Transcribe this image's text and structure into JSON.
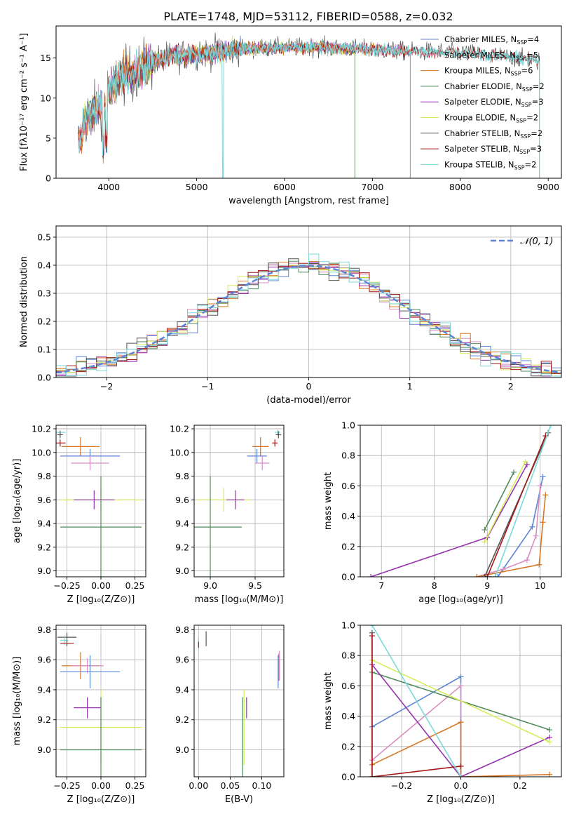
{
  "figure": {
    "title": "PLATE=1748, MJD=53112, FIBERID=0588, z=0.032"
  },
  "chart_data": [
    {
      "id": "spectrum",
      "type": "line",
      "xlabel": "wavelength [Angstrom, rest frame]",
      "ylabel": "Flux [fλ10⁻¹⁷ erg cm⁻² s⁻¹ A⁻¹]",
      "xlim": [
        3400,
        9150
      ],
      "ylim": [
        0,
        19
      ],
      "xticks": [
        4000,
        5000,
        6000,
        7000,
        8000,
        9000
      ],
      "yticks": [
        0,
        5,
        10,
        15
      ],
      "legend_position": "right",
      "continuum": {
        "x": [
          3650,
          3800,
          3950,
          4100,
          4300,
          4500,
          4700,
          4900,
          5100,
          5300,
          5500,
          5700,
          5900,
          6100,
          6300,
          6500,
          6700,
          6900,
          7100,
          7300,
          7500,
          7700,
          7900,
          8100,
          8300,
          8500,
          8700,
          8900
        ],
        "y": [
          6.5,
          8.0,
          9.5,
          12.5,
          13.2,
          14.5,
          15.2,
          15.4,
          15.6,
          15.9,
          16.1,
          16.2,
          16.3,
          16.3,
          16.4,
          16.3,
          16.2,
          16.1,
          16.0,
          15.9,
          15.8,
          15.8,
          15.7,
          15.6,
          15.4,
          15.2,
          14.9,
          14.6
        ]
      },
      "series": [
        {
          "name": "Chabrier MILES, N",
          "sub": "SSP",
          "suffix": "=4",
          "color": "#5b84d6",
          "x_end": 7430
        },
        {
          "name": "Salpeter MILES, N",
          "sub": "SSP",
          "suffix": "=5",
          "color": "#d98ec0",
          "x_end": 7430
        },
        {
          "name": "Kroupa MILES, N",
          "sub": "SSP",
          "suffix": "=6",
          "color": "#d57622",
          "x_end": 7430
        },
        {
          "name": "Chabrier ELODIE, N",
          "sub": "SSP",
          "suffix": "=2",
          "color": "#4f8a5c",
          "x_end": 6800
        },
        {
          "name": "Salpeter ELODIE, N",
          "sub": "SSP",
          "suffix": "=3",
          "color": "#9433ad",
          "x_end": 6800
        },
        {
          "name": "Kroupa ELODIE, N",
          "sub": "SSP",
          "suffix": "=2",
          "color": "#d7ec59",
          "x_end": 6800
        },
        {
          "name": "Chabrier STELIB, N",
          "sub": "SSP",
          "suffix": "=2",
          "color": "#555555",
          "x_end": 8900
        },
        {
          "name": "Salpeter STELIB, N",
          "sub": "SSP",
          "suffix": "=3",
          "color": "#a61717",
          "x_end": 8900
        },
        {
          "name": "Kroupa STELIB, N",
          "sub": "SSP",
          "suffix": "=2",
          "color": "#7bd9d9",
          "x_end": 8900
        }
      ]
    },
    {
      "id": "residuals",
      "type": "histogram",
      "xlabel": "(data-model)/error",
      "ylabel": "Normed distribution",
      "xlim": [
        -2.5,
        2.5
      ],
      "ylim": [
        0,
        0.54
      ],
      "xticks": [
        -2,
        -1,
        0,
        1,
        2
      ],
      "yticks": [
        0.0,
        0.1,
        0.2,
        0.3,
        0.4,
        0.5
      ],
      "grid": true,
      "legend": "𝒩(0, 1)",
      "legend_position": "top-right",
      "gaussian": {
        "mean": 0,
        "sigma": 1,
        "color": "#5b84d6"
      }
    },
    {
      "id": "age-vs-Z",
      "type": "errorbar",
      "xlabel": "Z [log₁₀(Z/Z⊙)]",
      "ylabel": "age  [log₁₀(age/yr)]",
      "xlim": [
        -0.33,
        0.33
      ],
      "ylim": [
        8.95,
        10.23
      ],
      "xticks": [
        -0.25,
        0.0,
        0.25
      ],
      "yticks": [
        9.0,
        9.2,
        9.4,
        9.6,
        9.8,
        10.0,
        10.2
      ],
      "grid": true,
      "points": [
        {
          "x": -0.3,
          "xerr": 0.04,
          "y": 10.17,
          "yerr": 0.02,
          "color": "#7bd9d9"
        },
        {
          "x": -0.3,
          "xerr": 0.02,
          "y": 10.15,
          "yerr": 0.03,
          "color": "#555555"
        },
        {
          "x": -0.3,
          "xerr": 0.04,
          "y": 10.08,
          "yerr": 0.03,
          "color": "#a61717"
        },
        {
          "x": -0.15,
          "xerr": 0.14,
          "y": 10.05,
          "yerr": 0.08,
          "color": "#d57622"
        },
        {
          "x": -0.08,
          "xerr": 0.22,
          "y": 9.97,
          "yerr": 0.06,
          "color": "#5b84d6"
        },
        {
          "x": -0.08,
          "xerr": 0.14,
          "y": 9.91,
          "yerr": 0.06,
          "color": "#d98ec0"
        },
        {
          "x": 0.0,
          "xerr": 0.3,
          "y": 9.6,
          "yerr": 0.1,
          "color": "#d7ec59"
        },
        {
          "x": -0.05,
          "xerr": 0.15,
          "y": 9.6,
          "yerr": 0.08,
          "color": "#9433ad"
        },
        {
          "x": 0.0,
          "xerr": 0.3,
          "y": 9.37,
          "yerr": 0.43,
          "color": "#4f8a5c"
        }
      ]
    },
    {
      "id": "age-vs-mass",
      "type": "errorbar",
      "xlabel": "mass [log₁₀(M/M⊙)]",
      "ylabel": "",
      "xlim": [
        8.82,
        9.82
      ],
      "ylim": [
        8.95,
        10.23
      ],
      "xticks": [
        9.0,
        9.5
      ],
      "yticks": [
        9.0,
        9.2,
        9.4,
        9.6,
        9.8,
        10.0,
        10.2
      ],
      "grid": true,
      "points": [
        {
          "x": 9.75,
          "xerr": 0.03,
          "y": 10.17,
          "yerr": 0.02,
          "color": "#7bd9d9"
        },
        {
          "x": 9.76,
          "xerr": 0.03,
          "y": 10.15,
          "yerr": 0.03,
          "color": "#555555"
        },
        {
          "x": 9.72,
          "xerr": 0.03,
          "y": 10.08,
          "yerr": 0.03,
          "color": "#a61717"
        },
        {
          "x": 9.56,
          "xerr": 0.09,
          "y": 10.05,
          "yerr": 0.08,
          "color": "#d57622"
        },
        {
          "x": 9.52,
          "xerr": 0.11,
          "y": 9.97,
          "yerr": 0.06,
          "color": "#5b84d6"
        },
        {
          "x": 9.58,
          "xerr": 0.08,
          "y": 9.91,
          "yerr": 0.06,
          "color": "#d98ec0"
        },
        {
          "x": 9.15,
          "xerr": 0.3,
          "y": 9.6,
          "yerr": 0.1,
          "color": "#d7ec59"
        },
        {
          "x": 9.28,
          "xerr": 0.1,
          "y": 9.6,
          "yerr": 0.08,
          "color": "#9433ad"
        },
        {
          "x": 9.0,
          "xerr": 0.35,
          "y": 9.37,
          "yerr": 0.43,
          "color": "#4f8a5c"
        }
      ]
    },
    {
      "id": "mass-weight-vs-age",
      "type": "line",
      "xlabel": "age  [log₁₀(age/yr)]",
      "ylabel": "mass weight",
      "xlim": [
        6.6,
        10.4
      ],
      "ylim": [
        0,
        1.0
      ],
      "xticks": [
        7,
        8,
        9,
        10
      ],
      "yticks": [
        0.0,
        0.2,
        0.4,
        0.6,
        0.8,
        1.0
      ],
      "grid": true,
      "series": [
        {
          "color": "#5b84d6",
          "x": [
            8.95,
            9.2,
            9.85,
            10.05
          ],
          "y": [
            0.0,
            0.0,
            0.33,
            0.66
          ]
        },
        {
          "color": "#d98ec0",
          "x": [
            8.8,
            9.3,
            9.75,
            9.92,
            10.0
          ],
          "y": [
            0.0,
            0.05,
            0.11,
            0.27,
            0.6
          ]
        },
        {
          "color": "#d57622",
          "x": [
            8.8,
            9.98,
            10.05,
            10.1
          ],
          "y": [
            0.0,
            0.08,
            0.36,
            0.54
          ]
        },
        {
          "color": "#4f8a5c",
          "x": [
            8.95,
            9.5
          ],
          "y": [
            0.31,
            0.69
          ]
        },
        {
          "color": "#9433ad",
          "x": [
            6.8,
            9.0,
            9.75
          ],
          "y": [
            0.0,
            0.26,
            0.74
          ]
        },
        {
          "color": "#d7ec59",
          "x": [
            8.95,
            9.72
          ],
          "y": [
            0.23,
            0.76
          ]
        },
        {
          "color": "#555555",
          "x": [
            8.95,
            10.15
          ],
          "y": [
            0.0,
            0.95
          ]
        },
        {
          "color": "#a61717",
          "x": [
            9.0,
            10.1
          ],
          "y": [
            0.0,
            0.93
          ]
        },
        {
          "color": "#7bd9d9",
          "x": [
            9.15,
            10.2
          ],
          "y": [
            0.0,
            1.0
          ]
        }
      ]
    },
    {
      "id": "mass-vs-Z",
      "type": "errorbar",
      "xlabel": "Z [log₁₀(Z/Z⊙)]",
      "ylabel": "mass [log₁₀(M/M⊙)]",
      "xlim": [
        -0.33,
        0.33
      ],
      "ylim": [
        8.82,
        9.83
      ],
      "xticks": [
        -0.25,
        0.0,
        0.25
      ],
      "yticks": [
        9.0,
        9.2,
        9.4,
        9.6,
        9.8
      ],
      "grid": true,
      "points": [
        {
          "x": -0.25,
          "xerr": 0.07,
          "y": 9.75,
          "yerr": 0.03,
          "color": "#555555"
        },
        {
          "x": -0.27,
          "xerr": 0.03,
          "y": 9.73,
          "yerr": 0.03,
          "color": "#7bd9d9"
        },
        {
          "x": -0.25,
          "xerr": 0.05,
          "y": 9.71,
          "yerr": 0.02,
          "color": "#a61717"
        },
        {
          "x": -0.15,
          "xerr": 0.14,
          "y": 9.56,
          "yerr": 0.09,
          "color": "#d57622"
        },
        {
          "x": -0.1,
          "xerr": 0.12,
          "y": 9.56,
          "yerr": 0.05,
          "color": "#d98ec0"
        },
        {
          "x": -0.08,
          "xerr": 0.22,
          "y": 9.52,
          "yerr": 0.11,
          "color": "#5b84d6"
        },
        {
          "x": -0.1,
          "xerr": 0.1,
          "y": 9.28,
          "yerr": 0.07,
          "color": "#9433ad"
        },
        {
          "x": 0.0,
          "xerr": 0.3,
          "y": 9.15,
          "yerr": 0.25,
          "color": "#d7ec59"
        },
        {
          "x": 0.0,
          "xerr": 0.3,
          "y": 9.0,
          "yerr": 0.35,
          "color": "#4f8a5c"
        }
      ]
    },
    {
      "id": "mass-vs-ebv",
      "type": "errorbar",
      "xlabel": "E(B-V)",
      "ylabel": "",
      "xlim": [
        -0.007,
        0.135
      ],
      "ylim": [
        8.82,
        9.83
      ],
      "xticks": [
        0.0,
        0.05,
        0.1
      ],
      "yticks": [
        9.0,
        9.2,
        9.4,
        9.6,
        9.8
      ],
      "grid": true,
      "points": [
        {
          "x": 0.012,
          "xerr": 0.0,
          "y": 9.74,
          "yerr": 0.05,
          "color": "#555555"
        },
        {
          "x": 0.0,
          "xerr": 0.0,
          "y": 9.72,
          "yerr": 0.03,
          "color": "#7bd9d9"
        },
        {
          "x": 0.0,
          "xerr": 0.0,
          "y": 9.7,
          "yerr": 0.02,
          "color": "#a61717"
        },
        {
          "x": 0.127,
          "xerr": 0.0,
          "y": 9.55,
          "yerr": 0.09,
          "color": "#d57622"
        },
        {
          "x": 0.128,
          "xerr": 0.0,
          "y": 9.56,
          "yerr": 0.1,
          "color": "#d98ec0"
        },
        {
          "x": 0.126,
          "xerr": 0.0,
          "y": 9.52,
          "yerr": 0.11,
          "color": "#5b84d6"
        },
        {
          "x": 0.076,
          "xerr": 0.0,
          "y": 9.28,
          "yerr": 0.07,
          "color": "#9433ad"
        },
        {
          "x": 0.072,
          "xerr": 0.0,
          "y": 9.15,
          "yerr": 0.25,
          "color": "#d7ec59"
        },
        {
          "x": 0.07,
          "xerr": 0.0,
          "y": 9.0,
          "yerr": 0.35,
          "color": "#4f8a5c"
        }
      ]
    },
    {
      "id": "mass-weight-vs-Z",
      "type": "line",
      "xlabel": "Z [log₁₀(Z/Z⊙)]",
      "ylabel": "mass weight",
      "xlim": [
        -0.34,
        0.34
      ],
      "ylim": [
        0,
        1.0
      ],
      "xticks": [
        -0.2,
        0.0,
        0.2
      ],
      "yticks": [
        0.0,
        0.2,
        0.4,
        0.6,
        0.8,
        1.0
      ],
      "grid": true,
      "series": [
        {
          "color": "#5b84d6",
          "x": [
            -0.3,
            0.0,
            0.0
          ],
          "y": [
            0.33,
            0.66,
            0.0
          ]
        },
        {
          "color": "#d98ec0",
          "x": [
            -0.3,
            0.0,
            0.0,
            -0.3
          ],
          "y": [
            0.11,
            0.6,
            0.0,
            0.0
          ]
        },
        {
          "color": "#d57622",
          "x": [
            -0.3,
            0.0,
            0.0,
            0.3
          ],
          "y": [
            0.08,
            0.36,
            0.0,
            0.015
          ]
        },
        {
          "color": "#4f8a5c",
          "x": [
            -0.3,
            0.3
          ],
          "y": [
            0.69,
            0.31
          ]
        },
        {
          "color": "#9433ad",
          "x": [
            -0.3,
            0.0,
            0.3
          ],
          "y": [
            0.74,
            0.0,
            0.26
          ]
        },
        {
          "color": "#d7ec59",
          "x": [
            -0.3,
            0.3
          ],
          "y": [
            0.77,
            0.23
          ]
        },
        {
          "color": "#555555",
          "x": [
            -0.3,
            -0.3
          ],
          "y": [
            0.0,
            0.95
          ]
        },
        {
          "color": "#a61717",
          "x": [
            -0.3,
            -0.3,
            0.0
          ],
          "y": [
            0.93,
            0.0,
            0.07
          ]
        },
        {
          "color": "#7bd9d9",
          "x": [
            -0.3,
            0.0
          ],
          "y": [
            1.0,
            0.0
          ]
        }
      ]
    }
  ]
}
